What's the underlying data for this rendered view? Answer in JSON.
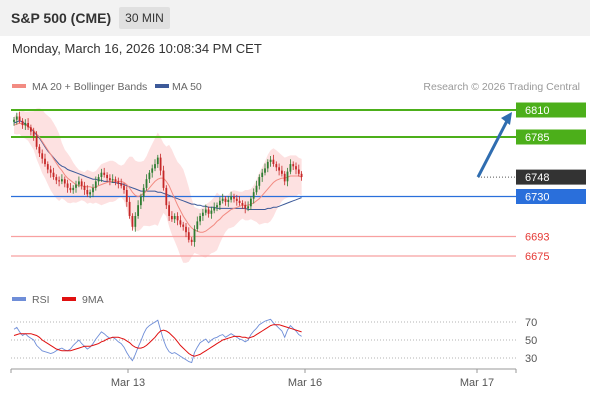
{
  "header": {
    "title": "S&P 500 (CME)",
    "timeframe": "30 MIN"
  },
  "datetime": "Monday, March 16, 2026 10:08:34 PM CET",
  "copyright": "Research © 2026 Trading Central",
  "colors": {
    "bull": "#2e7d32",
    "bear": "#c62828",
    "ma20": "#f28b82",
    "ma50": "#3d5a99",
    "bollinger_fill": "#fddcdc",
    "green_level": "#4caf1a",
    "blue_level": "#2a6fdb",
    "red_level": "#f8a0a0",
    "dark_label": "#333333",
    "red_label": "#e53935",
    "rsi": "#6f8ed8",
    "rsi_ma": "#e01010",
    "arrow": "#2f6db0"
  },
  "chart_data": [
    {
      "type": "candlestick",
      "title": "S&P 500 (CME)",
      "timeframe": "30 MIN",
      "legend": [
        {
          "name": "MA 20 + Bollinger Bands",
          "color": "#f28b82"
        },
        {
          "name": "MA 50",
          "color": "#3d5a99"
        }
      ],
      "x_tick_labels": [
        "Mar 13",
        "Mar 16",
        "Mar 17"
      ],
      "ylim": [
        6665,
        6820
      ],
      "levels": [
        {
          "label": "6810",
          "value": 6810,
          "style": "resistance",
          "color": "#4caf1a"
        },
        {
          "label": "6785",
          "value": 6785,
          "style": "resistance",
          "color": "#4caf1a"
        },
        {
          "label": "6748",
          "value": 6748,
          "style": "last",
          "color": "#333333"
        },
        {
          "label": "6730",
          "value": 6730,
          "style": "pivot",
          "color": "#2a6fdb"
        },
        {
          "label": "6693",
          "value": 6693,
          "style": "support",
          "color": "#f8a0a0"
        },
        {
          "label": "6675",
          "value": 6675,
          "style": "support",
          "color": "#f8a0a0"
        }
      ],
      "forecast_target": 6810,
      "close": [
        6801,
        6804,
        6800,
        6796,
        6798,
        6794,
        6790,
        6786,
        6776,
        6770,
        6765,
        6760,
        6755,
        6752,
        6748,
        6745,
        6744,
        6746,
        6742,
        6738,
        6736,
        6738,
        6741,
        6744,
        6740,
        6736,
        6732,
        6734,
        6738,
        6744,
        6748,
        6752,
        6750,
        6747,
        6745,
        6746,
        6744,
        6742,
        6740,
        6736,
        6725,
        6712,
        6702,
        6712,
        6722,
        6730,
        6738,
        6746,
        6752,
        6756,
        6760,
        6766,
        6754,
        6738,
        6722,
        6712,
        6709,
        6712,
        6708,
        6704,
        6702,
        6697,
        6690,
        6688,
        6700,
        6707,
        6712,
        6715,
        6718,
        6714,
        6717,
        6720,
        6722,
        6726,
        6728,
        6725,
        6727,
        6730,
        6728,
        6726,
        6724,
        6722,
        6719,
        6721,
        6728,
        6734,
        6740,
        6748,
        6752,
        6756,
        6762,
        6764,
        6760,
        6757,
        6754,
        6751,
        6744,
        6753,
        6760,
        6758,
        6755,
        6751,
        6748
      ],
      "ma20": [
        6796,
        6797,
        6798,
        6797,
        6796,
        6795,
        6793,
        6791,
        6788,
        6785,
        6781,
        6777,
        6773,
        6769,
        6765,
        6761,
        6757,
        6754,
        6750,
        6747,
        6745,
        6743,
        6741,
        6740,
        6740,
        6739,
        6739,
        6739,
        6738,
        6739,
        6740,
        6741,
        6742,
        6743,
        6744,
        6744,
        6744,
        6744,
        6744,
        6743,
        6741,
        6738,
        6734,
        6731,
        6730,
        6731,
        6733,
        6735,
        6738,
        6741,
        6744,
        6746,
        6747,
        6747,
        6744,
        6740,
        6734,
        6728,
        6722,
        6717,
        6712,
        6708,
        6704,
        6701,
        6699,
        6698,
        6697,
        6697,
        6698,
        6700,
        6702,
        6704,
        6707,
        6709,
        6712,
        6714,
        6716,
        6718,
        6719,
        6720,
        6721,
        6722,
        6722,
        6722,
        6723,
        6724,
        6726,
        6728,
        6731,
        6734,
        6737,
        6740,
        6743,
        6745,
        6746,
        6747,
        6747,
        6748,
        6749,
        6749,
        6749,
        6749,
        6748
      ],
      "ma50": [
        6798,
        6799,
        6800,
        6799,
        6797,
        6795,
        6793,
        6790,
        6787,
        6784,
        6780,
        6776,
        6772,
        6769,
        6766,
        6763,
        6760,
        6758,
        6757,
        6755,
        6754,
        6753,
        6752,
        6751,
        6750,
        6749,
        6748,
        6747,
        6746,
        6746,
        6745,
        6745,
        6744,
        6744,
        6744,
        6743,
        6743,
        6742,
        6742,
        6741,
        6740,
        6739,
        6738,
        6737,
        6736,
        6735,
        6735,
        6735,
        6735,
        6735,
        6735,
        6734,
        6734,
        6733,
        6732,
        6731,
        6730,
        6729,
        6728,
        6727,
        6726,
        6725,
        6724,
        6723,
        6723,
        6722,
        6722,
        6721,
        6721,
        6720,
        6720,
        6720,
        6719,
        6719,
        6719,
        6719,
        6719,
        6719,
        6719,
        6719,
        6719,
        6719,
        6719,
        6718,
        6718,
        6718,
        6718,
        6718,
        6718,
        6718,
        6719,
        6719,
        6720,
        6720,
        6721,
        6722,
        6723,
        6724,
        6725,
        6726,
        6727,
        6728,
        6729
      ]
    },
    {
      "type": "line",
      "legend": [
        {
          "name": "RSI",
          "color": "#6f8ed8"
        },
        {
          "name": "9MA",
          "color": "#e01010"
        }
      ],
      "y_tick_labels": [
        "70",
        "50",
        "30"
      ],
      "ylim": [
        20,
        80
      ],
      "rsi": [
        62,
        64,
        59,
        55,
        57,
        54,
        52,
        50,
        44,
        41,
        38,
        37,
        36,
        35,
        36,
        38,
        40,
        41,
        39,
        38,
        40,
        44,
        47,
        50,
        46,
        43,
        40,
        42,
        46,
        51,
        55,
        59,
        57,
        54,
        52,
        53,
        51,
        48,
        46,
        42,
        36,
        31,
        27,
        34,
        42,
        49,
        57,
        63,
        66,
        68,
        70,
        72,
        61,
        50,
        42,
        37,
        35,
        36,
        34,
        32,
        30,
        28,
        26,
        25,
        36,
        42,
        47,
        49,
        51,
        47,
        50,
        52,
        53,
        55,
        56,
        53,
        55,
        57,
        55,
        53,
        51,
        50,
        48,
        50,
        56,
        60,
        63,
        67,
        69,
        71,
        72,
        73,
        69,
        66,
        63,
        60,
        53,
        61,
        66,
        63,
        60,
        56,
        54
      ],
      "ma9": [
        55,
        56,
        57,
        57,
        57,
        57,
        57,
        56,
        55,
        53,
        50,
        48,
        46,
        44,
        42,
        40,
        39,
        38,
        38,
        38,
        38,
        39,
        40,
        41,
        42,
        43,
        43,
        43,
        44,
        45,
        46,
        48,
        49,
        51,
        52,
        53,
        53,
        53,
        52,
        51,
        49,
        47,
        44,
        42,
        41,
        41,
        42,
        44,
        47,
        50,
        53,
        57,
        60,
        61,
        60,
        58,
        55,
        52,
        48,
        44,
        41,
        38,
        35,
        33,
        32,
        33,
        34,
        36,
        38,
        40,
        42,
        44,
        46,
        48,
        50,
        51,
        52,
        53,
        54,
        54,
        54,
        53,
        53,
        52,
        53,
        54,
        56,
        58,
        60,
        62,
        64,
        66,
        67,
        67,
        67,
        66,
        65,
        64,
        63,
        62,
        61,
        60,
        59
      ]
    }
  ]
}
